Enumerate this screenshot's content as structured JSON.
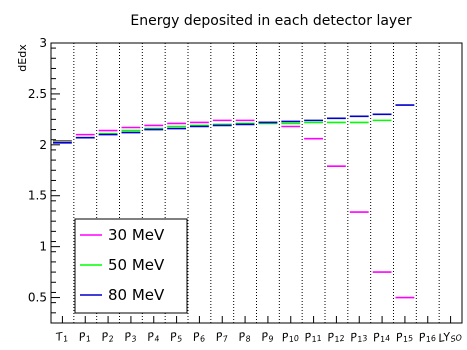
{
  "chart_data": {
    "type": "line",
    "title": "Energy deposited in each detector layer",
    "ylabel": "dEdx",
    "xlabel": "",
    "ylim": [
      0.25,
      3
    ],
    "yticks": [
      "0.5",
      "1",
      "1.5",
      "2",
      "2.5",
      "3"
    ],
    "ytick_values": [
      0.5,
      1,
      1.5,
      2,
      2.5,
      3
    ],
    "categories": [
      {
        "main": "T",
        "sub": "1"
      },
      {
        "main": "P",
        "sub": "1"
      },
      {
        "main": "P",
        "sub": "2"
      },
      {
        "main": "P",
        "sub": "3"
      },
      {
        "main": "P",
        "sub": "4"
      },
      {
        "main": "P",
        "sub": "5"
      },
      {
        "main": "P",
        "sub": "6"
      },
      {
        "main": "P",
        "sub": "7"
      },
      {
        "main": "P",
        "sub": "8"
      },
      {
        "main": "P",
        "sub": "9"
      },
      {
        "main": "P",
        "sub": "10"
      },
      {
        "main": "P",
        "sub": "11"
      },
      {
        "main": "P",
        "sub": "12"
      },
      {
        "main": "P",
        "sub": "13"
      },
      {
        "main": "P",
        "sub": "14"
      },
      {
        "main": "P",
        "sub": "15"
      },
      {
        "main": "P",
        "sub": "16"
      },
      {
        "main": "LY",
        "sub": "SO"
      }
    ],
    "grid": {
      "x": true,
      "y": false
    },
    "legend_position": "bottom-left",
    "series": [
      {
        "name": "30 MeV",
        "color": "#ff00ff",
        "values": [
          2.04,
          2.1,
          2.14,
          2.17,
          2.19,
          2.21,
          2.22,
          2.24,
          2.24,
          2.22,
          2.18,
          2.06,
          1.79,
          1.34,
          0.75,
          0.5,
          null,
          null
        ]
      },
      {
        "name": "50 MeV",
        "color": "#00ff00",
        "values": [
          2.03,
          2.07,
          2.11,
          2.14,
          2.16,
          2.18,
          2.19,
          2.2,
          2.21,
          2.21,
          2.21,
          2.22,
          2.22,
          2.22,
          2.24,
          null,
          null,
          null
        ]
      },
      {
        "name": "80 MeV",
        "color": "#0000cc",
        "values": [
          2.02,
          2.07,
          2.1,
          2.12,
          2.15,
          2.16,
          2.18,
          2.19,
          2.2,
          2.22,
          2.23,
          2.24,
          2.26,
          2.28,
          2.3,
          2.39,
          null,
          null
        ]
      }
    ]
  }
}
